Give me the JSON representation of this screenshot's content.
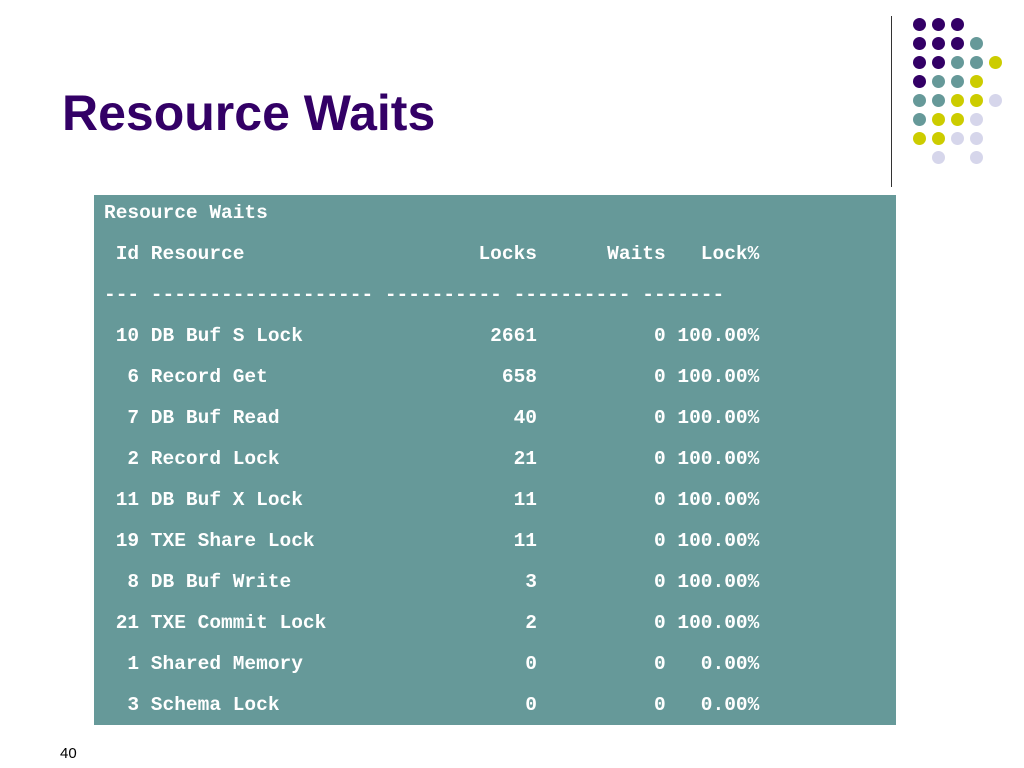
{
  "slide": {
    "title": "Resource Waits",
    "page_number": "40"
  },
  "report": {
    "caption": "Resource Waits",
    "header": " Id Resource                    Locks      Waits   Lock%",
    "separator": "--- ------------------- ---------- ---------- -------",
    "rows": [
      " 10 DB Buf S Lock                2661          0 100.00%",
      "  6 Record Get                    658          0 100.00%",
      "  7 DB Buf Read                    40          0 100.00%",
      "  2 Record Lock                    21          0 100.00%",
      " 11 DB Buf X Lock                  11          0 100.00%",
      " 19 TXE Share Lock                 11          0 100.00%",
      "  8 DB Buf Write                    3          0 100.00%",
      " 21 TXE Commit Lock                 2          0 100.00%",
      "  1 Shared Memory                   0          0   0.00%",
      "  3 Schema Lock                     0          0   0.00%"
    ]
  },
  "colors": {
    "title": "#330066",
    "panel": "#669999",
    "dot_purple": "#330066",
    "dot_teal": "#669999",
    "dot_yellow": "#CCCC00",
    "dot_lavender": "#D6D6EB"
  },
  "decoration": {
    "dot_grid": [
      [
        "purple",
        "purple",
        "purple",
        "",
        "",
        ""
      ],
      [
        "purple",
        "purple",
        "purple",
        "teal",
        "",
        ""
      ],
      [
        "purple",
        "purple",
        "teal",
        "teal",
        "yellow",
        ""
      ],
      [
        "purple",
        "teal",
        "teal",
        "yellow",
        "",
        ""
      ],
      [
        "teal",
        "teal",
        "yellow",
        "yellow",
        "lavender",
        ""
      ],
      [
        "teal",
        "yellow",
        "yellow",
        "lavender",
        "",
        ""
      ],
      [
        "yellow",
        "yellow",
        "lavender",
        "lavender",
        "",
        ""
      ],
      [
        "",
        "lavender",
        "",
        "lavender",
        "",
        ""
      ]
    ]
  }
}
